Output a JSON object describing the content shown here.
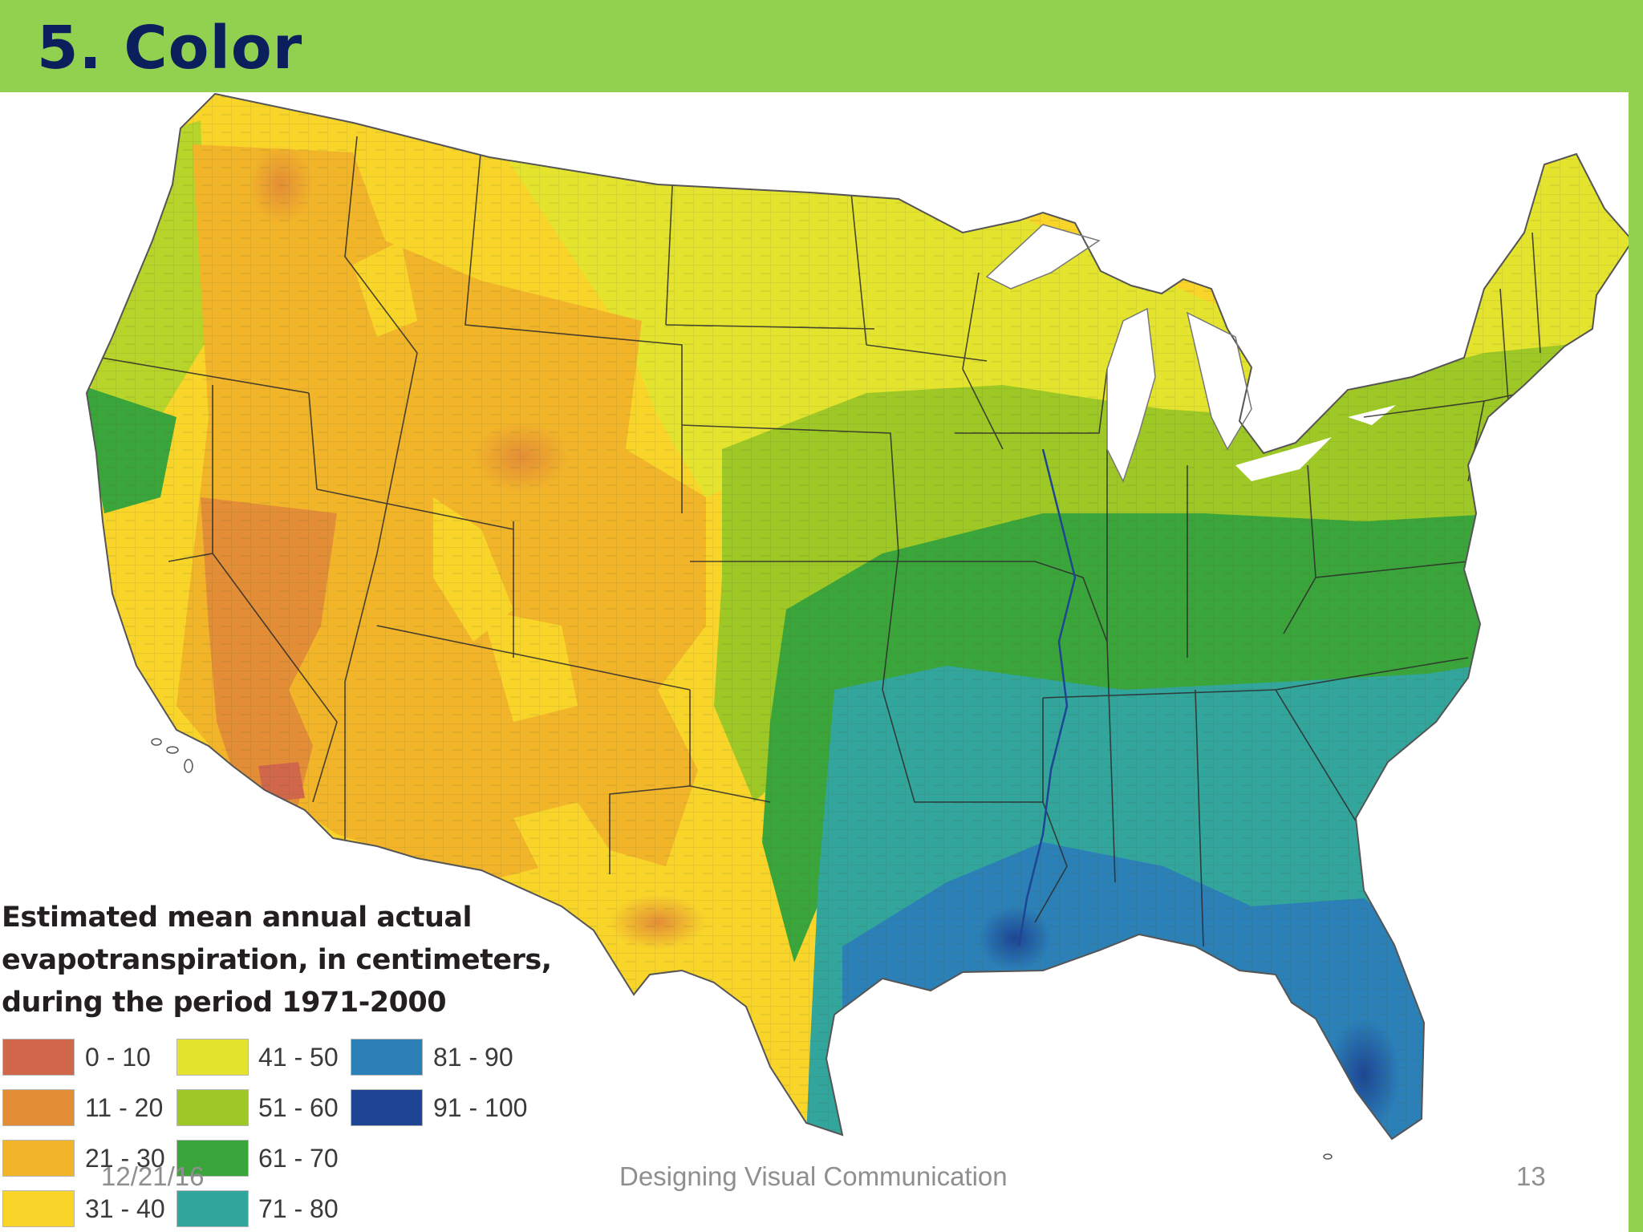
{
  "slide": {
    "title": "5.  Color",
    "header_color": "#92d050",
    "title_color": "#0b1f5c"
  },
  "map": {
    "subject": "Contiguous United States county-level map",
    "legend": {
      "title_lines": [
        "Estimated mean annual actual",
        "evapotranspiration, in centimeters,",
        "during the period 1971-2000"
      ],
      "classes": [
        {
          "range": "0 - 10",
          "color": "#d0664a"
        },
        {
          "range": "11 - 20",
          "color": "#e38d36"
        },
        {
          "range": "21 - 30",
          "color": "#f2b529"
        },
        {
          "range": "31 - 40",
          "color": "#f9d52a"
        },
        {
          "range": "41 - 50",
          "color": "#e4e42f"
        },
        {
          "range": "51 - 60",
          "color": "#9ec825"
        },
        {
          "range": "61 - 70",
          "color": "#3aa53b"
        },
        {
          "range": "71 - 80",
          "color": "#32a59c"
        },
        {
          "range": "81 - 90",
          "color": "#2b80b8"
        },
        {
          "range": "91 - 100",
          "color": "#1d4593"
        }
      ]
    }
  },
  "footer": {
    "date": "12/21/16",
    "course": "Designing Visual Communication",
    "page": "13"
  }
}
